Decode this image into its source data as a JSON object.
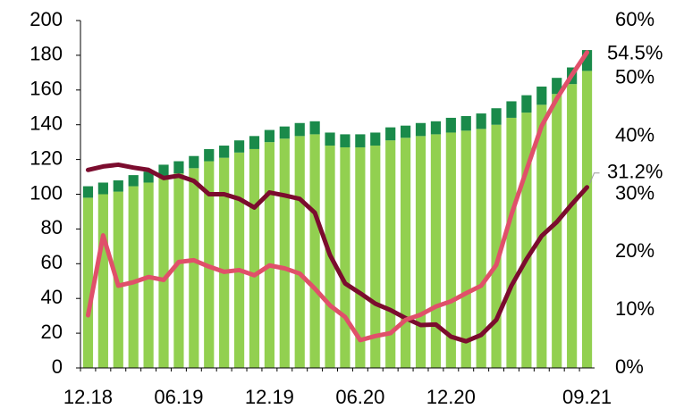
{
  "chart_data": {
    "type": "bar",
    "categories": [
      "12.18",
      null,
      null,
      null,
      null,
      null,
      "06.19",
      null,
      null,
      null,
      null,
      null,
      "12.19",
      null,
      null,
      null,
      null,
      null,
      "06.20",
      null,
      null,
      null,
      null,
      null,
      "12.20",
      null,
      null,
      null,
      null,
      null,
      null,
      null,
      null,
      "09.21"
    ],
    "series": [
      {
        "type": "bar",
        "stacked": true,
        "color": "#92d050",
        "values": [
          98,
          100,
          101.5,
          104.6,
          106.7,
          110,
          112,
          115,
          119,
          121,
          124,
          126,
          130,
          132,
          133.5,
          134.5,
          128,
          127,
          127,
          128,
          131,
          132.5,
          133.5,
          134.5,
          135.5,
          136.6,
          137.6,
          140,
          144,
          147,
          151.5,
          157.7,
          163.4,
          171
        ]
      },
      {
        "type": "bar",
        "stacked": true,
        "color": "#1a8a4a",
        "values": [
          6.6,
          6.7,
          6.5,
          6.4,
          6.3,
          7,
          7,
          7,
          7,
          7,
          7,
          7.5,
          7,
          7,
          7.5,
          7.5,
          7.5,
          7.5,
          7.5,
          7.5,
          7.5,
          7,
          7.5,
          7.5,
          8.5,
          8.4,
          8.9,
          9.5,
          9.5,
          10,
          10.5,
          9.3,
          9.6,
          12
        ]
      },
      {
        "type": "line",
        "axis": "y2",
        "color": "#7b0c2e",
        "values": [
          34.2,
          34.8,
          35.1,
          34.6,
          34.2,
          32.8,
          33.2,
          32.3,
          30,
          30,
          29.2,
          27.7,
          30.3,
          29.8,
          29.2,
          26.8,
          19.5,
          14.6,
          12.9,
          11.1,
          10,
          8.6,
          7.4,
          7.5,
          5.4,
          4.6,
          5.7,
          8.3,
          14.2,
          18.8,
          22.8,
          25.2,
          28.3,
          31.2
        ]
      },
      {
        "type": "line",
        "axis": "y2",
        "color": "#e0506a",
        "values": [
          9.1,
          22.9,
          14.2,
          14.8,
          15.7,
          15.2,
          18.3,
          18.6,
          17.5,
          16.6,
          16.9,
          16,
          17.7,
          17.2,
          16.3,
          13.7,
          10.8,
          8.8,
          4.8,
          5.5,
          6,
          8.3,
          9.2,
          10.6,
          11.5,
          12.9,
          14.2,
          17.8,
          26.5,
          34.2,
          41.8,
          46.5,
          50.6,
          54.5
        ]
      }
    ],
    "ylim": [
      0,
      200
    ],
    "yticks": [
      0,
      20,
      40,
      60,
      80,
      100,
      120,
      140,
      160,
      180,
      200
    ],
    "y2lim": [
      0,
      60
    ],
    "y2ticks": [
      {
        "value": 0,
        "label": "0%"
      },
      {
        "value": 10,
        "label": "10%"
      },
      {
        "value": 20,
        "label": "20%"
      },
      {
        "value": 30,
        "label": "30%"
      },
      {
        "value": 40,
        "label": "40%"
      },
      {
        "value": 50,
        "label": "50%"
      },
      {
        "value": 60,
        "label": "60%"
      }
    ],
    "annotations": [
      {
        "text": "54.5%",
        "series": 3
      },
      {
        "text": "31.2%",
        "series": 2
      }
    ],
    "grid": false
  }
}
